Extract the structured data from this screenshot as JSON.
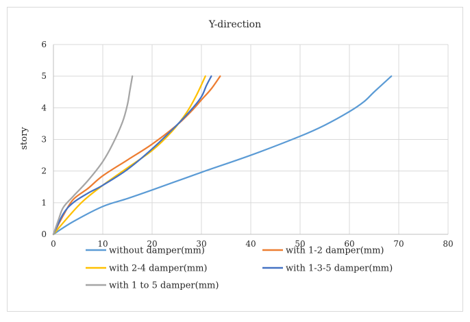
{
  "chart_data": {
    "type": "line",
    "title": "Y-direction",
    "xlabel": "",
    "ylabel": "story",
    "xlim": [
      0,
      80
    ],
    "ylim": [
      0,
      6
    ],
    "xticks": [
      "0",
      "10",
      "20",
      "30",
      "40",
      "50",
      "60",
      "70",
      "80"
    ],
    "yticks": [
      "0",
      "1",
      "2",
      "3",
      "4",
      "5",
      "6"
    ],
    "grid": true,
    "legend_position": "bottom",
    "series": [
      {
        "name": "without damper(mm)",
        "color": "#5b9bd5",
        "points": [
          [
            0,
            0
          ],
          [
            4,
            0.4
          ],
          [
            10,
            0.88
          ],
          [
            15,
            1.13
          ],
          [
            20,
            1.4
          ],
          [
            30,
            1.96
          ],
          [
            40,
            2.5
          ],
          [
            50,
            3.1
          ],
          [
            55,
            3.45
          ],
          [
            60,
            3.88
          ],
          [
            63,
            4.2
          ],
          [
            65,
            4.5
          ],
          [
            68.5,
            5.0
          ]
        ]
      },
      {
        "name": "with 1-2 damper(mm)",
        "color": "#ed7d31",
        "points": [
          [
            0,
            0
          ],
          [
            2,
            0.6
          ],
          [
            4,
            1.1
          ],
          [
            7,
            1.45
          ],
          [
            10,
            1.85
          ],
          [
            15,
            2.35
          ],
          [
            20,
            2.85
          ],
          [
            25,
            3.45
          ],
          [
            28,
            3.9
          ],
          [
            30,
            4.25
          ],
          [
            32,
            4.6
          ],
          [
            33.8,
            5.0
          ]
        ]
      },
      {
        "name": "with 2-4 damper(mm)",
        "color": "#ffc000",
        "points": [
          [
            0,
            0
          ],
          [
            3,
            0.55
          ],
          [
            6,
            1.05
          ],
          [
            10,
            1.55
          ],
          [
            15,
            2.1
          ],
          [
            20,
            2.65
          ],
          [
            24,
            3.25
          ],
          [
            27,
            3.85
          ],
          [
            29,
            4.4
          ],
          [
            30.8,
            5.0
          ]
        ]
      },
      {
        "name": "with 1-3-5 damper(mm)",
        "color": "#4472c4",
        "points": [
          [
            0,
            0
          ],
          [
            2,
            0.65
          ],
          [
            4,
            1.0
          ],
          [
            7,
            1.3
          ],
          [
            10,
            1.55
          ],
          [
            15,
            2.05
          ],
          [
            20,
            2.7
          ],
          [
            25,
            3.45
          ],
          [
            28,
            3.95
          ],
          [
            30,
            4.35
          ],
          [
            31,
            4.7
          ],
          [
            32,
            5.0
          ]
        ]
      },
      {
        "name": "with 1 to 5 damper(mm)",
        "color": "#a5a5a5",
        "points": [
          [
            0,
            0
          ],
          [
            1,
            0.45
          ],
          [
            2,
            0.85
          ],
          [
            4,
            1.2
          ],
          [
            7,
            1.7
          ],
          [
            10,
            2.3
          ],
          [
            12,
            2.85
          ],
          [
            14,
            3.55
          ],
          [
            15,
            4.1
          ],
          [
            15.5,
            4.55
          ],
          [
            16,
            5.0
          ]
        ]
      }
    ]
  }
}
